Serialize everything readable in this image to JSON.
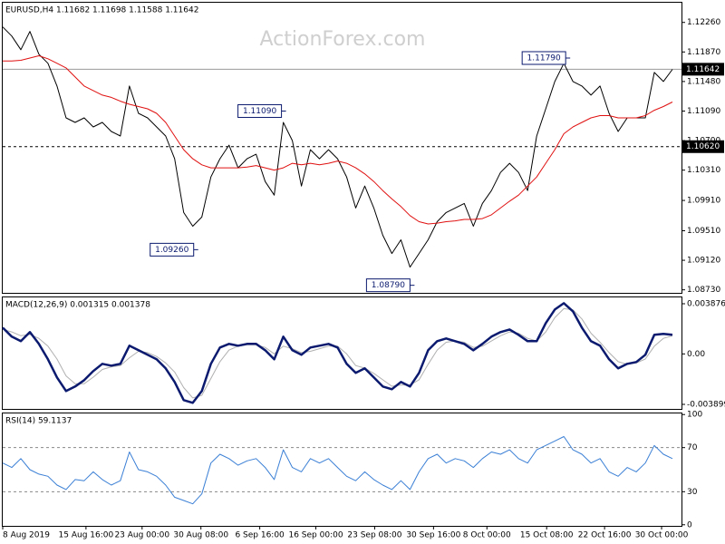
{
  "watermark": "ActionForex.com",
  "chart_data": [
    {
      "type": "line",
      "title": "EURUSD,H4  1.11682 1.11698 1.11588 1.11642",
      "x": [
        0,
        1,
        2,
        3,
        4,
        5,
        6,
        7,
        8,
        9,
        10,
        11,
        12,
        13,
        14,
        15,
        16,
        17,
        18,
        19,
        20,
        21,
        22,
        23,
        24,
        25,
        26,
        27,
        28,
        29,
        30,
        31,
        32,
        33,
        34,
        35,
        36,
        37,
        38,
        39,
        40,
        41,
        42,
        43,
        44,
        45,
        46,
        47,
        48,
        49,
        50,
        51,
        52,
        53,
        54,
        55,
        56,
        57,
        58,
        59,
        60,
        61,
        62,
        63,
        64,
        65,
        66,
        67,
        68,
        69,
        70,
        71,
        72,
        73,
        74
      ],
      "xlim": [
        0,
        75
      ],
      "ylim": [
        1.0869,
        1.1252
      ],
      "yticks": [
        {
          "value": 1.1226,
          "label": "1.12260"
        },
        {
          "value": 1.1187,
          "label": "1.11870"
        },
        {
          "value": 1.1148,
          "label": "1.11480"
        },
        {
          "value": 1.1109,
          "label": "1.11090"
        },
        {
          "value": 1.107,
          "label": "1.10700"
        },
        {
          "value": 1.1031,
          "label": "1.10310"
        },
        {
          "value": 1.0991,
          "label": "1.09910"
        },
        {
          "value": 1.0951,
          "label": "1.09510"
        },
        {
          "value": 1.0912,
          "label": "1.09120"
        },
        {
          "value": 1.0873,
          "label": "1.08730"
        }
      ],
      "series": [
        {
          "color": "#000000",
          "width": 1,
          "values": [
            1.122,
            1.1208,
            1.119,
            1.1214,
            1.1184,
            1.1172,
            1.1142,
            1.11,
            1.1094,
            1.11,
            1.1088,
            1.1094,
            1.1082,
            1.1076,
            1.1142,
            1.1106,
            1.11,
            1.1088,
            1.1076,
            1.1046,
            1.0975,
            1.0957,
            1.0969,
            1.1022,
            1.1046,
            1.1064,
            1.1034,
            1.1046,
            1.1052,
            1.1016,
            1.0998,
            1.1094,
            1.107,
            1.101,
            1.1058,
            1.1046,
            1.1058,
            1.1046,
            1.1022,
            1.0981,
            1.101,
            1.0981,
            1.0945,
            1.0921,
            1.0939,
            1.0903,
            1.0921,
            1.0939,
            1.0963,
            1.0975,
            1.0981,
            1.0987,
            1.0957,
            1.0987,
            1.1004,
            1.1028,
            1.104,
            1.1028,
            1.1004,
            1.1076,
            1.1112,
            1.1148,
            1.1172,
            1.1148,
            1.1142,
            1.113,
            1.1142,
            1.1106,
            1.1082,
            1.11,
            1.11,
            1.11,
            1.116,
            1.1148,
            1.1164
          ]
        },
        {
          "color": "#e01010",
          "width": 1,
          "values": [
            1.1175,
            1.1175,
            1.1176,
            1.1179,
            1.1182,
            1.1178,
            1.1172,
            1.1166,
            1.1154,
            1.1142,
            1.1136,
            1.113,
            1.1127,
            1.1122,
            1.1118,
            1.1115,
            1.1112,
            1.1106,
            1.1094,
            1.1076,
            1.1058,
            1.1046,
            1.1038,
            1.1034,
            1.1034,
            1.1034,
            1.1034,
            1.1035,
            1.1037,
            1.1034,
            1.1031,
            1.1034,
            1.104,
            1.1038,
            1.104,
            1.1038,
            1.104,
            1.1043,
            1.104,
            1.1034,
            1.1026,
            1.1016,
            1.1004,
            1.0993,
            1.0983,
            1.0971,
            1.0963,
            1.096,
            1.0961,
            1.0963,
            1.0964,
            1.0966,
            1.0966,
            1.0967,
            1.0972,
            1.0981,
            1.099,
            1.0998,
            1.101,
            1.1022,
            1.104,
            1.1058,
            1.1079,
            1.1088,
            1.1094,
            1.11,
            1.1103,
            1.1103,
            1.11,
            1.11,
            1.11,
            1.1103,
            1.111,
            1.1115,
            1.1121
          ]
        }
      ],
      "annotations": [
        {
          "label": "1.09260",
          "x": 21.3,
          "value": 1.0926
        },
        {
          "label": "1.11090",
          "x": 31,
          "value": 1.1109
        },
        {
          "label": "1.08790",
          "x": 45.2,
          "value": 1.0879
        },
        {
          "label": "1.11790",
          "x": 62.4,
          "value": 1.1179
        }
      ],
      "hlines": [
        {
          "label": "1.11642",
          "value": 1.11642,
          "style": "solid"
        },
        {
          "label": "1.10620",
          "value": 1.1062,
          "style": "dashed"
        }
      ]
    },
    {
      "type": "line",
      "title": "MACD(12,26,9) 0.001315 0.001378",
      "x": [
        0,
        1,
        2,
        3,
        4,
        5,
        6,
        7,
        8,
        9,
        10,
        11,
        12,
        13,
        14,
        15,
        16,
        17,
        18,
        19,
        20,
        21,
        22,
        23,
        24,
        25,
        26,
        27,
        28,
        29,
        30,
        31,
        32,
        33,
        34,
        35,
        36,
        37,
        38,
        39,
        40,
        41,
        42,
        43,
        44,
        45,
        46,
        47,
        48,
        49,
        50,
        51,
        52,
        53,
        54,
        55,
        56,
        57,
        58,
        59,
        60,
        61,
        62,
        63,
        64,
        65,
        66,
        67,
        68,
        69,
        70,
        71,
        72,
        73,
        74
      ],
      "xlim": [
        0,
        75
      ],
      "ylim": [
        -0.004249,
        0.004366
      ],
      "yticks": [
        0.003876,
        {
          "value": 0,
          "label": "0.00"
        },
        -0.003899
      ],
      "series": [
        {
          "color": "#b0b0b0",
          "width": 1,
          "values": [
            0.0019,
            0.0017,
            0.0014,
            0.0015,
            0.0012,
            0.0006,
            -0.0004,
            -0.0017,
            -0.0023,
            -0.0023,
            -0.0018,
            -0.0012,
            -0.001,
            -0.0009,
            -0.0003,
            0.0002,
            0.0001,
            -0.0002,
            -0.0007,
            -0.0014,
            -0.0026,
            -0.0034,
            -0.0032,
            -0.0019,
            -0.0006,
            0.0003,
            0.0006,
            0.0007,
            0.0007,
            0.0005,
            0.0,
            0.0006,
            0.0004,
            0.0001,
            0.0002,
            0.0004,
            0.0006,
            0.0006,
            0.0,
            -0.0009,
            -0.0011,
            -0.0015,
            -0.002,
            -0.0025,
            -0.0024,
            -0.0024,
            -0.002,
            -0.0008,
            0.0003,
            0.0009,
            0.001,
            0.0009,
            0.0005,
            0.0006,
            0.001,
            0.0014,
            0.0017,
            0.0016,
            0.0012,
            0.001,
            0.0017,
            0.0028,
            0.0035,
            0.0034,
            0.0027,
            0.0016,
            0.0009,
            0.0001,
            -0.0006,
            -0.0008,
            -0.0007,
            -0.0004,
            0.0006,
            0.0012,
            0.0014
          ]
        },
        {
          "color": "#0b1a6e",
          "width": 2.5,
          "values": [
            0.00203,
            0.00133,
            0.00098,
            0.00168,
            0.00077,
            -0.00042,
            -0.00182,
            -0.00287,
            -0.00252,
            -0.00203,
            -0.00133,
            -0.00077,
            -0.00091,
            -0.00077,
            0.00063,
            0.00028,
            -7e-05,
            -0.00042,
            -0.00112,
            -0.00217,
            -0.00357,
            -0.00378,
            -0.00287,
            -0.00077,
            0.00049,
            0.00077,
            0.00063,
            0.00077,
            0.00077,
            0.00028,
            -0.00042,
            0.00133,
            0.00028,
            -7e-05,
            0.00049,
            0.00063,
            0.00077,
            0.00049,
            -0.00077,
            -0.00147,
            -0.00112,
            -0.00182,
            -0.00252,
            -0.00273,
            -0.00217,
            -0.00252,
            -0.00147,
            0.00028,
            0.00098,
            0.00119,
            0.00098,
            0.00077,
            0.00028,
            0.00077,
            0.00133,
            0.00168,
            0.00189,
            0.00147,
            0.00098,
            0.00098,
            0.00238,
            0.00343,
            0.00392,
            0.00329,
            0.00203,
            0.00098,
            0.00063,
            -0.00042,
            -0.00112,
            -0.00077,
            -0.00063,
            -7e-05,
            0.00147,
            0.00154,
            0.00147
          ]
        }
      ]
    },
    {
      "type": "line",
      "title": "RSI(14) 59.1137",
      "x": [
        0,
        1,
        2,
        3,
        4,
        5,
        6,
        7,
        8,
        9,
        10,
        11,
        12,
        13,
        14,
        15,
        16,
        17,
        18,
        19,
        20,
        21,
        22,
        23,
        24,
        25,
        26,
        27,
        28,
        29,
        30,
        31,
        32,
        33,
        34,
        35,
        36,
        37,
        38,
        39,
        40,
        41,
        42,
        43,
        44,
        45,
        46,
        47,
        48,
        49,
        50,
        51,
        52,
        53,
        54,
        55,
        56,
        57,
        58,
        59,
        60,
        61,
        62,
        63,
        64,
        65,
        66,
        67,
        68,
        69,
        70,
        71,
        72,
        73,
        74
      ],
      "xlim": [
        0,
        75
      ],
      "xticks": [
        {
          "value": 0,
          "label": "8 Aug 2019"
        },
        {
          "value": 9.2,
          "label": "15 Aug 16:00"
        },
        {
          "value": 15.4,
          "label": "23 Aug 00:00"
        },
        {
          "value": 21.9,
          "label": "30 Aug 08:00"
        },
        {
          "value": 28.4,
          "label": "6 Sep 16:00"
        },
        {
          "value": 34.6,
          "label": "16 Sep 00:00"
        },
        {
          "value": 41.1,
          "label": "23 Sep 08:00"
        },
        {
          "value": 47.6,
          "label": "30 Sep 16:00"
        },
        {
          "value": 53.5,
          "label": "8 Oct 00:00"
        },
        {
          "value": 60.1,
          "label": "15 Oct 08:00"
        },
        {
          "value": 66.5,
          "label": "22 Oct 16:00"
        },
        {
          "value": 72.8,
          "label": "30 Oct 00:00"
        }
      ],
      "ylim": [
        -1,
        101
      ],
      "yticks": [
        100,
        70,
        30,
        0
      ],
      "levels": [
        70,
        30
      ],
      "series": [
        {
          "color": "#3a7fd5",
          "width": 1,
          "values": [
            56,
            52,
            60,
            50,
            46,
            44,
            36,
            32,
            41,
            40,
            48,
            41,
            36,
            40,
            66,
            50,
            48,
            44,
            36,
            25,
            22,
            19,
            28,
            56,
            64,
            60,
            54,
            58,
            60,
            52,
            41,
            68,
            52,
            48,
            60,
            56,
            60,
            52,
            44,
            40,
            48,
            41,
            36,
            32,
            40,
            32,
            48,
            60,
            64,
            56,
            60,
            58,
            52,
            60,
            66,
            64,
            68,
            60,
            56,
            68,
            72,
            76,
            80,
            68,
            64,
            56,
            60,
            48,
            44,
            52,
            48,
            56,
            72,
            64,
            60
          ]
        }
      ]
    }
  ]
}
